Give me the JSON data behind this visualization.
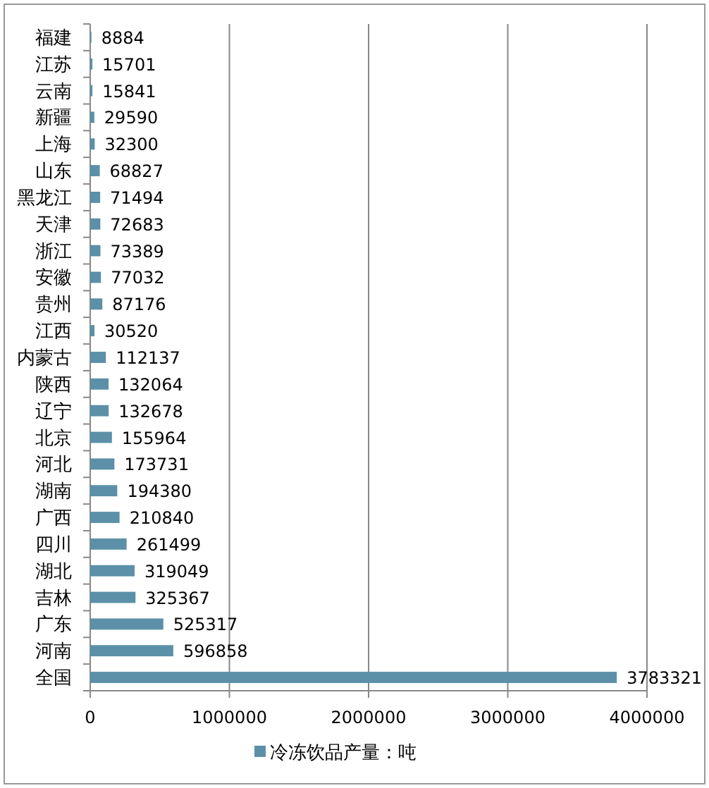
{
  "chart_data": {
    "type": "bar",
    "orientation": "horizontal",
    "categories": [
      "福建",
      "江苏",
      "云南",
      "新疆",
      "上海",
      "山东",
      "黑龙江",
      "天津",
      "浙江",
      "安徽",
      "贵州",
      "江西",
      "内蒙古",
      "陕西",
      "辽宁",
      "北京",
      "河北",
      "湖南",
      "广西",
      "四川",
      "湖北",
      "吉林",
      "广东",
      "河南",
      "全国"
    ],
    "series": [
      {
        "name": "冷冻饮品产量：吨",
        "color": "#5b90a8",
        "values": [
          8884,
          15701,
          15841,
          29590,
          32300,
          68827,
          71494,
          72683,
          73389,
          77032,
          87176,
          30520,
          112137,
          132064,
          132678,
          155964,
          173731,
          194380,
          210840,
          261499,
          319049,
          325367,
          525317,
          596858,
          3783321
        ]
      }
    ],
    "xlim": [
      0,
      4000000
    ],
    "xticks": [
      0,
      1000000,
      2000000,
      3000000,
      4000000
    ],
    "grid": "x",
    "legend": "bottom",
    "data_labels": true
  }
}
